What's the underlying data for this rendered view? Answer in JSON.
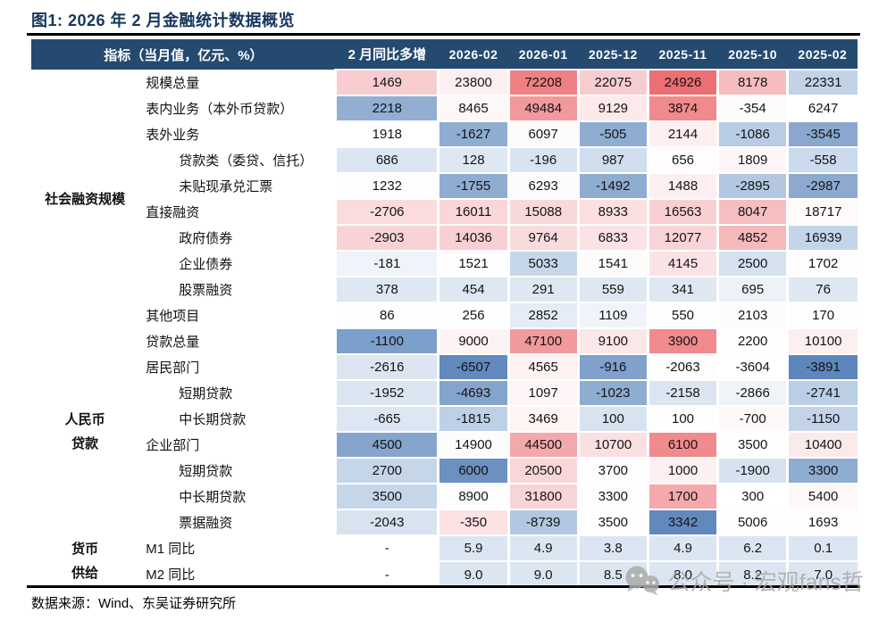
{
  "title": "图1: 2026 年 2 月金融统计数据概览",
  "source_note": "数据来源：Wind、东吴证券研究所",
  "watermark": {
    "icon": "wechat-icon",
    "text": "公众号 · 宏观fans哲"
  },
  "colors": {
    "header_bg": "#254A70",
    "header_text": "#FFFFFF",
    "title_text": "#17365D",
    "rule": "#000000",
    "watermark_gray": "#A9A9A9"
  },
  "table": {
    "indicator_label": "指标（当月值，亿元、%）",
    "yoy_label": "2 月同比多增",
    "months": [
      "2026-02",
      "2026-01",
      "2025-12",
      "2025-11",
      "2025-10",
      "2025-02"
    ],
    "groups": [
      {
        "name": "社会融资规模",
        "lines": [
          "社会融资规模"
        ],
        "rowspan": 10
      },
      {
        "name": "人民币贷款",
        "lines": [
          "人民币",
          "贷款"
        ],
        "rowspan": 8
      },
      {
        "name": "货币供给",
        "lines": [
          "货币",
          "供给"
        ],
        "rowspan": 2
      }
    ],
    "rows": [
      {
        "label": "规模总量",
        "indent": 1,
        "group": 0,
        "values": [
          "1469",
          "23800",
          "72208",
          "22075",
          "24926",
          "8178",
          "22331"
        ],
        "colors": [
          "#F8CDD0",
          "#FDEFF0",
          "#EF8185",
          "#F8CDD0",
          "#EC6F73",
          "#F6BDC0",
          "#C2D3E8"
        ]
      },
      {
        "label": "表内业务（本外币贷款）",
        "indent": 1,
        "group": 0,
        "values": [
          "2218",
          "8465",
          "49484",
          "9129",
          "3874",
          "-354",
          "6247"
        ],
        "colors": [
          "#92AED3",
          "#FEF7F7",
          "#F1999C",
          "#FCE9EA",
          "#F08A8D",
          "#FDFBFB",
          "#FFFFFF"
        ]
      },
      {
        "label": "表外业务",
        "indent": 1,
        "group": 0,
        "values": [
          "1918",
          "-1627",
          "6097",
          "-505",
          "2144",
          "-1086",
          "-3545"
        ],
        "colors": [
          "#FFFFFF",
          "#8FACD1",
          "#FEFBFB",
          "#8FACD1",
          "#FDEFF0",
          "#B8CCE3",
          "#8AA8CF"
        ]
      },
      {
        "label": "贷款类（委贷、信托）",
        "indent": 2,
        "group": 0,
        "values": [
          "686",
          "128",
          "-196",
          "987",
          "656",
          "1809",
          "-558"
        ],
        "colors": [
          "#DCE6F2",
          "#DEE8F3",
          "#D9E4F1",
          "#CFDDEE",
          "#FEFCFC",
          "#FEF6F6",
          "#CBDAEC"
        ]
      },
      {
        "label": "未贴现承兑汇票",
        "indent": 2,
        "group": 0,
        "values": [
          "1232",
          "-1755",
          "6293",
          "-1492",
          "1488",
          "-2895",
          "-2987"
        ],
        "colors": [
          "#FEFCFC",
          "#8FACD1",
          "#FEFBFB",
          "#8FACD1",
          "#FDEFF0",
          "#B3C7E1",
          "#8CAAD0"
        ]
      },
      {
        "label": "直接融资",
        "indent": 1,
        "group": 0,
        "values": [
          "-2706",
          "16011",
          "15088",
          "8933",
          "16563",
          "8047",
          "18717"
        ],
        "colors": [
          "#FADCDE",
          "#F9D6D8",
          "#F9D8DA",
          "#FBDFE1",
          "#F8D0D3",
          "#F5BFC2",
          "#FEFAFA"
        ]
      },
      {
        "label": "政府债券",
        "indent": 2,
        "group": 0,
        "values": [
          "-2903",
          "14036",
          "9764",
          "6833",
          "12077",
          "4852",
          "16939"
        ],
        "colors": [
          "#F8D3D6",
          "#F8CFD2",
          "#FADBDD",
          "#FBE2E4",
          "#F9D4D7",
          "#F5B8BB",
          "#C5D5E9"
        ]
      },
      {
        "label": "企业债券",
        "indent": 2,
        "group": 0,
        "values": [
          "-181",
          "1521",
          "5033",
          "1541",
          "4145",
          "2500",
          "1702"
        ],
        "colors": [
          "#EFF4FA",
          "#FEFDFD",
          "#C7D7EA",
          "#FEFBFB",
          "#FBE3E5",
          "#D5E1EF",
          "#FEFCFC"
        ]
      },
      {
        "label": "股票融资",
        "indent": 2,
        "group": 0,
        "values": [
          "378",
          "454",
          "291",
          "559",
          "341",
          "695",
          "76"
        ],
        "colors": [
          "#DEE8F3",
          "#DEE8F3",
          "#DEE8F3",
          "#DEE8F3",
          "#DEE8F3",
          "#EDF2F9",
          "#DEE8F3"
        ]
      },
      {
        "label": "其他项目",
        "indent": 1,
        "group": 0,
        "values": [
          "86",
          "256",
          "2852",
          "1109",
          "550",
          "2103",
          "170"
        ],
        "colors": [
          "#FEFEFE",
          "#FEFEFE",
          "#E4ECF6",
          "#F0F4FA",
          "#FEFEFE",
          "#FBFCFD",
          "#FEFEFE"
        ]
      },
      {
        "label": "贷款总量",
        "indent": 1,
        "group": 1,
        "values": [
          "-1100",
          "9000",
          "47100",
          "9100",
          "3900",
          "2200",
          "10100"
        ],
        "colors": [
          "#7BA0CB",
          "#FDF3F3",
          "#F1999C",
          "#FBE7E8",
          "#F08A8D",
          "#FEFEFE",
          "#FCEFEF"
        ]
      },
      {
        "label": "居民部门",
        "indent": 1,
        "group": 1,
        "values": [
          "-2616",
          "-6507",
          "4565",
          "-916",
          "-2063",
          "-3604",
          "-3891"
        ],
        "colors": [
          "#DCE6F2",
          "#6289BD",
          "#FDF1F2",
          "#7FA1CB",
          "#FEFDFD",
          "#FFFFFF",
          "#5D86BC"
        ]
      },
      {
        "label": "短期贷款",
        "indent": 2,
        "group": 1,
        "values": [
          "-1952",
          "-4693",
          "1097",
          "-1023",
          "-2158",
          "-2866",
          "-2741"
        ],
        "colors": [
          "#DCE6F2",
          "#84A4CD",
          "#FEF6F6",
          "#8FACD1",
          "#DAE5F1",
          "#EFF4F9",
          "#BACEE5"
        ]
      },
      {
        "label": "中长期贷款",
        "indent": 2,
        "group": 1,
        "values": [
          "-665",
          "-1815",
          "3469",
          "100",
          "100",
          "-700",
          "-1150"
        ],
        "colors": [
          "#DDE7F3",
          "#BDD0E7",
          "#FEF4F4",
          "#D8E3F0",
          "#FEFDFD",
          "#FEF8F8",
          "#C3D4E9"
        ]
      },
      {
        "label": "企业部门",
        "indent": 1,
        "group": 1,
        "values": [
          "4500",
          "14900",
          "44500",
          "10700",
          "6100",
          "3500",
          "10400"
        ],
        "colors": [
          "#85A5CD",
          "#FEFBFB",
          "#F3A9AC",
          "#FBE0E2",
          "#F08A8D",
          "#FEFEFE",
          "#FCEAEB"
        ]
      },
      {
        "label": "短期贷款",
        "indent": 2,
        "group": 1,
        "values": [
          "2700",
          "6000",
          "20500",
          "3700",
          "1000",
          "-1900",
          "3300"
        ],
        "colors": [
          "#C6D6E9",
          "#6C90C0",
          "#F9D7D9",
          "#FEFCFC",
          "#FDF0F0",
          "#D7E2F0",
          "#8FACD1"
        ]
      },
      {
        "label": "中长期贷款",
        "indent": 2,
        "group": 1,
        "values": [
          "3500",
          "8900",
          "31800",
          "3300",
          "1700",
          "300",
          "5400"
        ],
        "colors": [
          "#C6D6E9",
          "#FEFDFD",
          "#F9D4D6",
          "#FEFDFD",
          "#F5A9AC",
          "#FFFFFF",
          "#FEF7F7"
        ]
      },
      {
        "label": "票据融资",
        "indent": 2,
        "group": 1,
        "values": [
          "-2043",
          "-350",
          "-8739",
          "3500",
          "3342",
          "5006",
          "1693"
        ],
        "colors": [
          "#D8E3F0",
          "#FBE2E3",
          "#B3C7E1",
          "#FEFEFE",
          "#6189BE",
          "#FEFEFE",
          "#FEFCFC"
        ]
      },
      {
        "label": "M1 同比",
        "indent": 1,
        "group": 2,
        "values": [
          "-",
          "5.9",
          "4.9",
          "3.8",
          "4.9",
          "6.2",
          "0.1"
        ],
        "colors": [
          "#FFFFFF",
          "#DCE6F2",
          "#DCE6F2",
          "#DCE6F2",
          "#DCE6F2",
          "#DCE6F2",
          "#DCE6F2"
        ]
      },
      {
        "label": "M2 同比",
        "indent": 1,
        "group": 2,
        "values": [
          "-",
          "9.0",
          "9.0",
          "8.5",
          "8.0",
          "8.2",
          "7.0"
        ],
        "colors": [
          "#FFFFFF",
          "#DCE6F2",
          "#DCE6F2",
          "#DCE6F2",
          "#DCE6F2",
          "#DCE6F2",
          "#DCE6F2"
        ]
      }
    ]
  }
}
